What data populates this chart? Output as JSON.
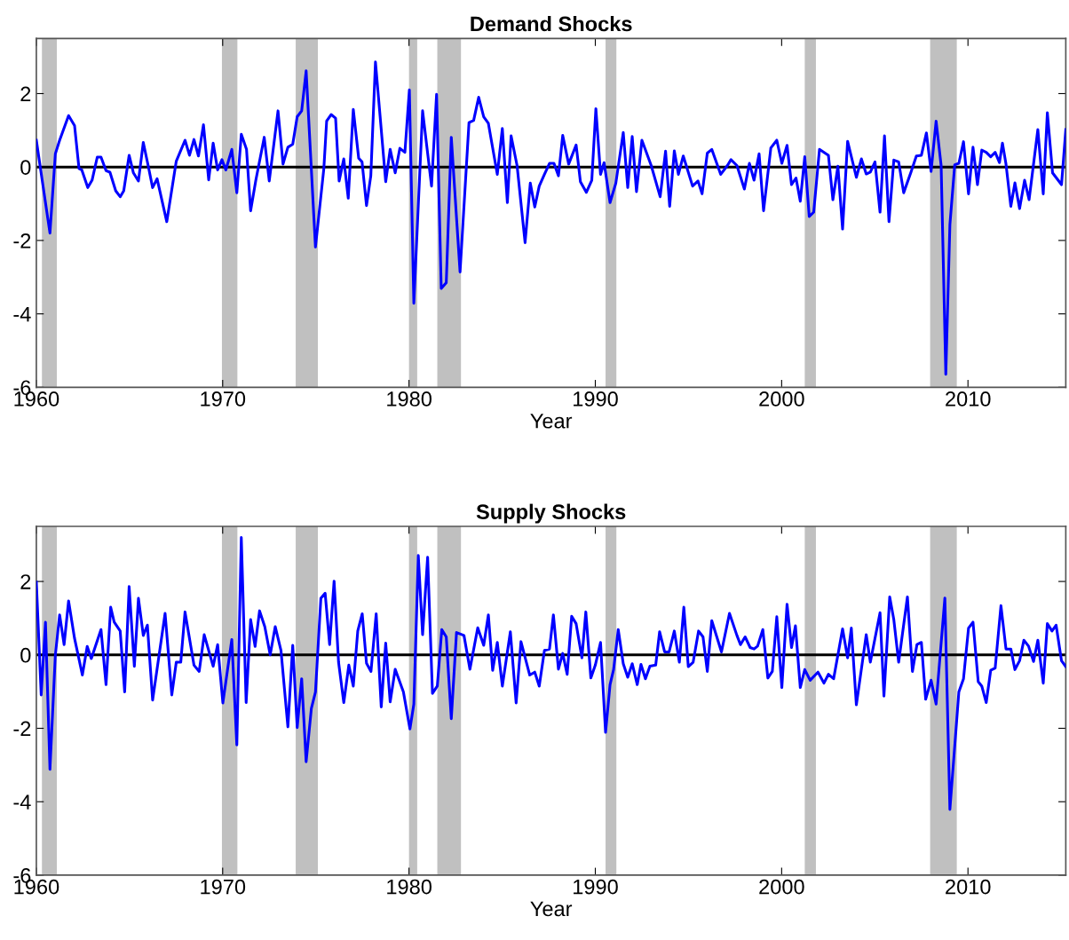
{
  "chart_data": [
    {
      "type": "line",
      "title": "Demand Shocks",
      "xlabel": "Year",
      "xlim": [
        1960,
        2015.25
      ],
      "ylim": [
        -6,
        3.5
      ],
      "xticks": [
        1960,
        1970,
        1980,
        1990,
        2000,
        2010
      ],
      "yticks": [
        -6,
        -4,
        -2,
        0,
        2
      ],
      "x": [
        1960.0,
        1960.73,
        1961.02,
        1961.25,
        1961.73,
        1962.05,
        1962.29,
        1962.44,
        1962.76,
        1962.99,
        1963.27,
        1963.47,
        1963.74,
        1963.95,
        1964.26,
        1964.5,
        1964.69,
        1964.98,
        1965.21,
        1965.48,
        1965.74,
        1966.0,
        1966.24,
        1966.48,
        1967.0,
        1967.51,
        1967.98,
        1968.22,
        1968.46,
        1968.7,
        1968.97,
        1969.25,
        1969.49,
        1969.73,
        1969.96,
        1970.17,
        1970.49,
        1970.76,
        1971.0,
        1971.28,
        1971.5,
        1971.78,
        1972.23,
        1972.5,
        1972.97,
        1973.24,
        1973.5,
        1973.76,
        1974.0,
        1974.24,
        1974.48,
        1974.98,
        1975.43,
        1975.58,
        1975.82,
        1976.06,
        1976.25,
        1976.5,
        1976.74,
        1977.01,
        1977.3,
        1977.48,
        1977.72,
        1977.95,
        1978.2,
        1978.75,
        1978.99,
        1979.26,
        1979.51,
        1979.78,
        1980.02,
        1980.26,
        1980.73,
        1981.21,
        1981.48,
        1981.73,
        1982.0,
        1982.27,
        1982.74,
        1983.22,
        1983.47,
        1983.74,
        1984.01,
        1984.26,
        1984.74,
        1985.01,
        1985.28,
        1985.48,
        1985.8,
        1986.23,
        1986.51,
        1986.75,
        1986.99,
        1987.27,
        1987.54,
        1987.78,
        1988.02,
        1988.25,
        1988.57,
        1988.97,
        1989.2,
        1989.52,
        1989.81,
        1990.03,
        1990.28,
        1990.47,
        1990.79,
        1991.1,
        1991.5,
        1991.74,
        1991.98,
        1992.21,
        1992.5,
        1993.0,
        1993.48,
        1993.77,
        1993.99,
        1994.24,
        1994.46,
        1994.72,
        1995.22,
        1995.51,
        1995.73,
        1996.01,
        1996.25,
        1996.73,
        1997.09,
        1997.28,
        1997.6,
        1998.0,
        1998.27,
        1998.52,
        1998.79,
        1999.03,
        1999.42,
        1999.74,
        2000.01,
        2000.29,
        2000.53,
        2000.77,
        2001.0,
        2001.24,
        2001.48,
        2001.72,
        2002.03,
        2002.51,
        2002.75,
        2003.02,
        2003.27,
        2003.54,
        2004.01,
        2004.28,
        2004.54,
        2004.76,
        2005.01,
        2005.28,
        2005.52,
        2005.76,
        2006.02,
        2006.28,
        2006.55,
        2006.94,
        2007.23,
        2007.5,
        2007.77,
        2008.02,
        2008.29,
        2008.56,
        2008.81,
        2009.03,
        2009.29,
        2009.51,
        2009.76,
        2010.03,
        2010.27,
        2010.51,
        2010.74,
        2010.98,
        2011.22,
        2011.46,
        2011.69,
        2011.85,
        2012.04,
        2012.3,
        2012.52,
        2012.77,
        2013.04,
        2013.28,
        2013.75,
        2014.04,
        2014.26,
        2014.54,
        2015.02,
        2015.25
      ],
      "series": [
        {
          "color": "#0000ff",
          "values": [
            0.73,
            -1.8,
            0.36,
            0.73,
            1.4,
            1.13,
            -0.04,
            -0.08,
            -0.56,
            -0.36,
            0.27,
            0.27,
            -0.1,
            -0.14,
            -0.65,
            -0.81,
            -0.65,
            0.32,
            -0.16,
            -0.38,
            0.67,
            0.04,
            -0.56,
            -0.32,
            -1.49,
            0.16,
            0.73,
            0.32,
            0.75,
            0.3,
            1.15,
            -0.35,
            0.65,
            -0.08,
            0.2,
            -0.08,
            0.48,
            -0.7,
            0.89,
            0.48,
            -1.19,
            -0.36,
            0.81,
            -0.38,
            1.53,
            0.08,
            0.54,
            0.62,
            1.37,
            1.53,
            2.62,
            -2.18,
            -0.04,
            1.25,
            1.43,
            1.33,
            -0.38,
            0.22,
            -0.85,
            1.57,
            0.24,
            0.14,
            -1.05,
            -0.24,
            2.86,
            -0.4,
            0.48,
            -0.16,
            0.51,
            0.4,
            2.1,
            -3.71,
            1.53,
            -0.52,
            1.98,
            -3.31,
            -3.15,
            0.81,
            -2.86,
            1.21,
            1.27,
            1.9,
            1.37,
            1.19,
            -0.2,
            1.05,
            -0.97,
            0.85,
            0.04,
            -2.06,
            -0.44,
            -1.09,
            -0.52,
            -0.2,
            0.1,
            0.1,
            -0.24,
            0.86,
            0.08,
            0.6,
            -0.4,
            -0.69,
            -0.36,
            1.59,
            -0.2,
            0.12,
            -0.97,
            -0.44,
            0.94,
            -0.56,
            0.83,
            -0.67,
            0.73,
            0.04,
            -0.81,
            0.43,
            -1.07,
            0.44,
            -0.2,
            0.3,
            -0.52,
            -0.38,
            -0.73,
            0.38,
            0.48,
            -0.2,
            0.04,
            0.2,
            0.04,
            -0.6,
            0.1,
            -0.36,
            0.36,
            -1.19,
            0.52,
            0.73,
            0.1,
            0.59,
            -0.48,
            -0.3,
            -0.93,
            0.28,
            -1.35,
            -1.23,
            0.48,
            0.32,
            -0.89,
            0.02,
            -1.69,
            0.7,
            -0.28,
            0.22,
            -0.19,
            -0.14,
            0.14,
            -1.23,
            0.85,
            -1.49,
            0.19,
            0.14,
            -0.7,
            -0.14,
            0.3,
            0.32,
            0.93,
            -0.12,
            1.25,
            0.04,
            -5.65,
            -1.57,
            0.06,
            0.1,
            0.69,
            -0.73,
            0.54,
            -0.48,
            0.46,
            0.4,
            0.28,
            0.4,
            0.12,
            0.65,
            0.08,
            -1.07,
            -0.43,
            -1.13,
            -0.36,
            -0.89,
            1.02,
            -0.73,
            1.48,
            -0.16,
            -0.48,
            1.02
          ]
        }
      ],
      "ref_lines": [
        {
          "axis": "y",
          "value": 0,
          "color": "#000000"
        }
      ],
      "bands": [
        {
          "axis": "x",
          "from": 1960.3,
          "to": 1961.1,
          "color": "#c0c0c0"
        },
        {
          "axis": "x",
          "from": 1969.96,
          "to": 1970.79,
          "color": "#c0c0c0"
        },
        {
          "axis": "x",
          "from": 1973.92,
          "to": 1975.11,
          "color": "#c0c0c0"
        },
        {
          "axis": "x",
          "from": 1980.0,
          "to": 1980.44,
          "color": "#c0c0c0"
        },
        {
          "axis": "x",
          "from": 1981.52,
          "to": 1982.79,
          "color": "#c0c0c0"
        },
        {
          "axis": "x",
          "from": 1990.55,
          "to": 1991.13,
          "color": "#c0c0c0"
        },
        {
          "axis": "x",
          "from": 2001.24,
          "to": 2001.84,
          "color": "#c0c0c0"
        },
        {
          "axis": "x",
          "from": 2007.97,
          "to": 2009.4,
          "color": "#c0c0c0"
        }
      ]
    },
    {
      "type": "line",
      "title": "Supply Shocks",
      "xlabel": "Year",
      "xlim": [
        1960,
        2015.25
      ],
      "ylim": [
        -6,
        3.5
      ],
      "xticks": [
        1960,
        1970,
        1980,
        1990,
        2000,
        2010
      ],
      "yticks": [
        -6,
        -4,
        -2,
        0,
        2
      ],
      "x": [
        1960.0,
        1960.26,
        1960.49,
        1960.73,
        1961.02,
        1961.25,
        1961.49,
        1961.73,
        1962.05,
        1962.47,
        1962.73,
        1962.95,
        1963.47,
        1963.74,
        1963.99,
        1964.18,
        1964.5,
        1964.74,
        1964.98,
        1965.26,
        1965.48,
        1965.74,
        1965.96,
        1966.24,
        1966.91,
        1967.27,
        1967.51,
        1967.75,
        1967.98,
        1968.46,
        1968.74,
        1969.01,
        1969.49,
        1969.73,
        1970.01,
        1970.49,
        1970.76,
        1971.0,
        1971.26,
        1971.5,
        1971.74,
        1971.98,
        1972.26,
        1972.55,
        1972.82,
        1973.13,
        1973.5,
        1973.76,
        1974.0,
        1974.24,
        1974.48,
        1974.76,
        1974.98,
        1975.27,
        1975.5,
        1975.74,
        1975.98,
        1976.22,
        1976.5,
        1976.77,
        1977.01,
        1977.25,
        1977.49,
        1977.72,
        1977.96,
        1978.24,
        1978.51,
        1978.75,
        1978.99,
        1979.26,
        1979.7,
        1980.05,
        1980.26,
        1980.5,
        1980.73,
        1981.0,
        1981.26,
        1981.52,
        1981.76,
        1982.0,
        1982.27,
        1982.55,
        1982.95,
        1983.27,
        1983.69,
        1984.01,
        1984.26,
        1984.49,
        1984.74,
        1985.01,
        1985.44,
        1985.75,
        1986.01,
        1986.48,
        1986.75,
        1986.99,
        1987.27,
        1987.54,
        1987.75,
        1988.02,
        1988.25,
        1988.49,
        1988.73,
        1988.97,
        1989.28,
        1989.49,
        1989.76,
        1990.0,
        1990.28,
        1990.55,
        1990.79,
        1990.98,
        1991.23,
        1991.5,
        1991.74,
        1991.98,
        1992.25,
        1992.45,
        1992.69,
        1992.93,
        1993.24,
        1993.45,
        1993.72,
        1993.96,
        1994.24,
        1994.51,
        1994.75,
        1994.99,
        1995.25,
        1995.54,
        1995.78,
        1996.01,
        1996.25,
        1996.52,
        1996.77,
        1997.2,
        1997.6,
        1997.79,
        1998.04,
        1998.31,
        1998.52,
        1998.71,
        1998.99,
        1999.26,
        1999.5,
        1999.74,
        2000.01,
        2000.29,
        2000.53,
        2000.74,
        2001.0,
        2001.24,
        2001.53,
        2001.95,
        2002.27,
        2002.51,
        2002.79,
        2003.27,
        2003.54,
        2003.74,
        2004.01,
        2004.54,
        2004.76,
        2005.28,
        2005.49,
        2005.8,
        2006.02,
        2006.28,
        2006.75,
        2007.02,
        2007.26,
        2007.5,
        2007.73,
        2008.02,
        2008.29,
        2008.76,
        2009.03,
        2009.51,
        2009.76,
        2010.03,
        2010.27,
        2010.55,
        2010.74,
        2010.98,
        2011.22,
        2011.46,
        2011.77,
        2012.04,
        2012.3,
        2012.52,
        2012.77,
        2013.0,
        2013.25,
        2013.52,
        2013.75,
        2014.04,
        2014.26,
        2014.51,
        2014.73,
        2015.02,
        2015.25
      ],
      "series": [
        {
          "color": "#0000ff",
          "values": [
            1.98,
            -1.09,
            0.89,
            -3.12,
            0.0,
            1.09,
            0.28,
            1.47,
            0.45,
            -0.55,
            0.23,
            -0.1,
            0.69,
            -0.81,
            1.3,
            0.89,
            0.65,
            -1.01,
            1.86,
            -0.31,
            1.54,
            0.53,
            0.81,
            -1.23,
            1.13,
            -1.09,
            -0.2,
            -0.2,
            1.17,
            -0.28,
            -0.45,
            0.55,
            -0.31,
            0.28,
            -1.31,
            0.42,
            -2.45,
            3.2,
            -1.3,
            0.96,
            0.23,
            1.2,
            0.77,
            0.0,
            0.77,
            0.12,
            -1.96,
            0.26,
            -1.98,
            -0.65,
            -2.91,
            -1.46,
            -1.01,
            1.54,
            1.68,
            0.28,
            2.01,
            -0.2,
            -1.3,
            -0.28,
            -0.85,
            0.65,
            1.12,
            -0.23,
            -0.45,
            1.12,
            -1.42,
            0.32,
            -1.28,
            -0.39,
            -1.01,
            -2.02,
            -1.34,
            2.71,
            0.55,
            2.66,
            -1.05,
            -0.85,
            0.69,
            0.49,
            -1.74,
            0.61,
            0.53,
            -0.39,
            0.74,
            0.26,
            1.09,
            -0.42,
            0.34,
            -0.85,
            0.63,
            -1.31,
            0.36,
            -0.55,
            -0.47,
            -0.85,
            0.12,
            0.16,
            1.09,
            -0.39,
            0.04,
            -0.53,
            1.05,
            0.85,
            -0.08,
            1.17,
            -0.63,
            -0.28,
            0.34,
            -2.11,
            -0.81,
            -0.4,
            0.69,
            -0.24,
            -0.61,
            -0.24,
            -0.81,
            -0.26,
            -0.65,
            -0.31,
            -0.28,
            0.63,
            0.08,
            0.08,
            0.65,
            -0.2,
            1.3,
            -0.32,
            -0.2,
            0.65,
            0.49,
            -0.45,
            0.93,
            0.49,
            0.08,
            1.13,
            0.53,
            0.28,
            0.49,
            0.2,
            0.16,
            0.24,
            0.69,
            -0.63,
            -0.45,
            1.04,
            -0.89,
            1.38,
            0.2,
            0.79,
            -0.89,
            -0.4,
            -0.69,
            -0.47,
            -0.77,
            -0.53,
            -0.65,
            0.71,
            -0.08,
            0.73,
            -1.36,
            0.55,
            -0.2,
            1.15,
            -1.12,
            1.58,
            0.96,
            -0.2,
            1.58,
            -0.45,
            0.28,
            0.34,
            -1.21,
            -0.69,
            -1.34,
            1.55,
            -4.21,
            -1.01,
            -0.65,
            0.73,
            0.89,
            -0.73,
            -0.85,
            -1.3,
            -0.42,
            -0.36,
            1.34,
            0.16,
            0.16,
            -0.4,
            -0.16,
            0.4,
            0.24,
            -0.18,
            0.4,
            -0.77,
            0.85,
            0.65,
            0.81,
            -0.16,
            -0.32
          ]
        }
      ],
      "ref_lines": [
        {
          "axis": "y",
          "value": 0,
          "color": "#000000"
        }
      ],
      "bands": [
        {
          "axis": "x",
          "from": 1960.3,
          "to": 1961.1,
          "color": "#c0c0c0"
        },
        {
          "axis": "x",
          "from": 1969.96,
          "to": 1970.79,
          "color": "#c0c0c0"
        },
        {
          "axis": "x",
          "from": 1973.92,
          "to": 1975.11,
          "color": "#c0c0c0"
        },
        {
          "axis": "x",
          "from": 1980.0,
          "to": 1980.44,
          "color": "#c0c0c0"
        },
        {
          "axis": "x",
          "from": 1981.52,
          "to": 1982.79,
          "color": "#c0c0c0"
        },
        {
          "axis": "x",
          "from": 1990.55,
          "to": 1991.13,
          "color": "#c0c0c0"
        },
        {
          "axis": "x",
          "from": 2001.24,
          "to": 2001.84,
          "color": "#c0c0c0"
        },
        {
          "axis": "x",
          "from": 2007.97,
          "to": 2009.4,
          "color": "#c0c0c0"
        }
      ]
    }
  ]
}
